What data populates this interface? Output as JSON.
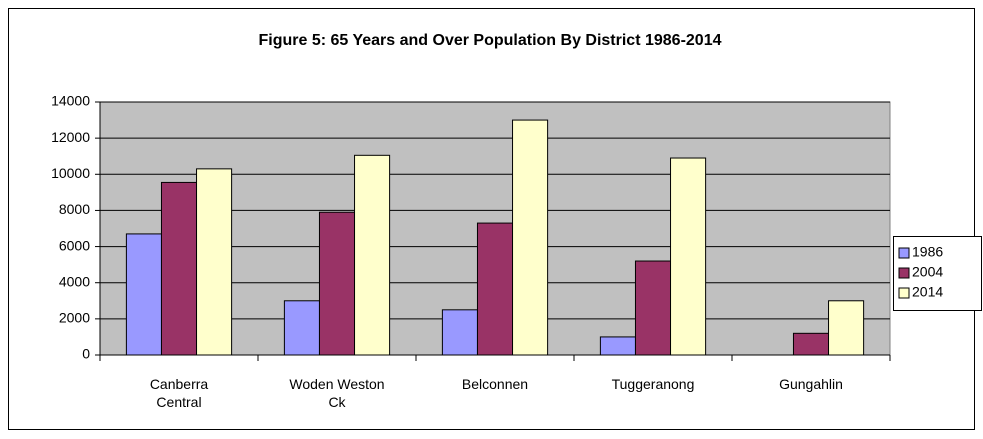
{
  "chart_data": {
    "type": "bar",
    "title": "Figure 5: 65 Years and Over Population By District 1986-2014",
    "categories": [
      "Canberra Central",
      "Woden Weston Ck",
      "Belconnen",
      "Tuggeranong",
      "Gungahlin"
    ],
    "series": [
      {
        "name": "1986",
        "color": "#9999ff",
        "values": [
          6700,
          3000,
          2500,
          1000,
          0
        ]
      },
      {
        "name": "2004",
        "color": "#993366",
        "values": [
          9550,
          7900,
          7300,
          5200,
          1200
        ]
      },
      {
        "name": "2014",
        "color": "#ffffcc",
        "values": [
          10300,
          11050,
          13000,
          10900,
          3000
        ]
      }
    ],
    "ylim": [
      0,
      14000
    ],
    "yticks": [
      0,
      2000,
      4000,
      6000,
      8000,
      10000,
      12000,
      14000
    ],
    "grid": true,
    "legend": "right",
    "plot_background": "#c0c0c0"
  }
}
